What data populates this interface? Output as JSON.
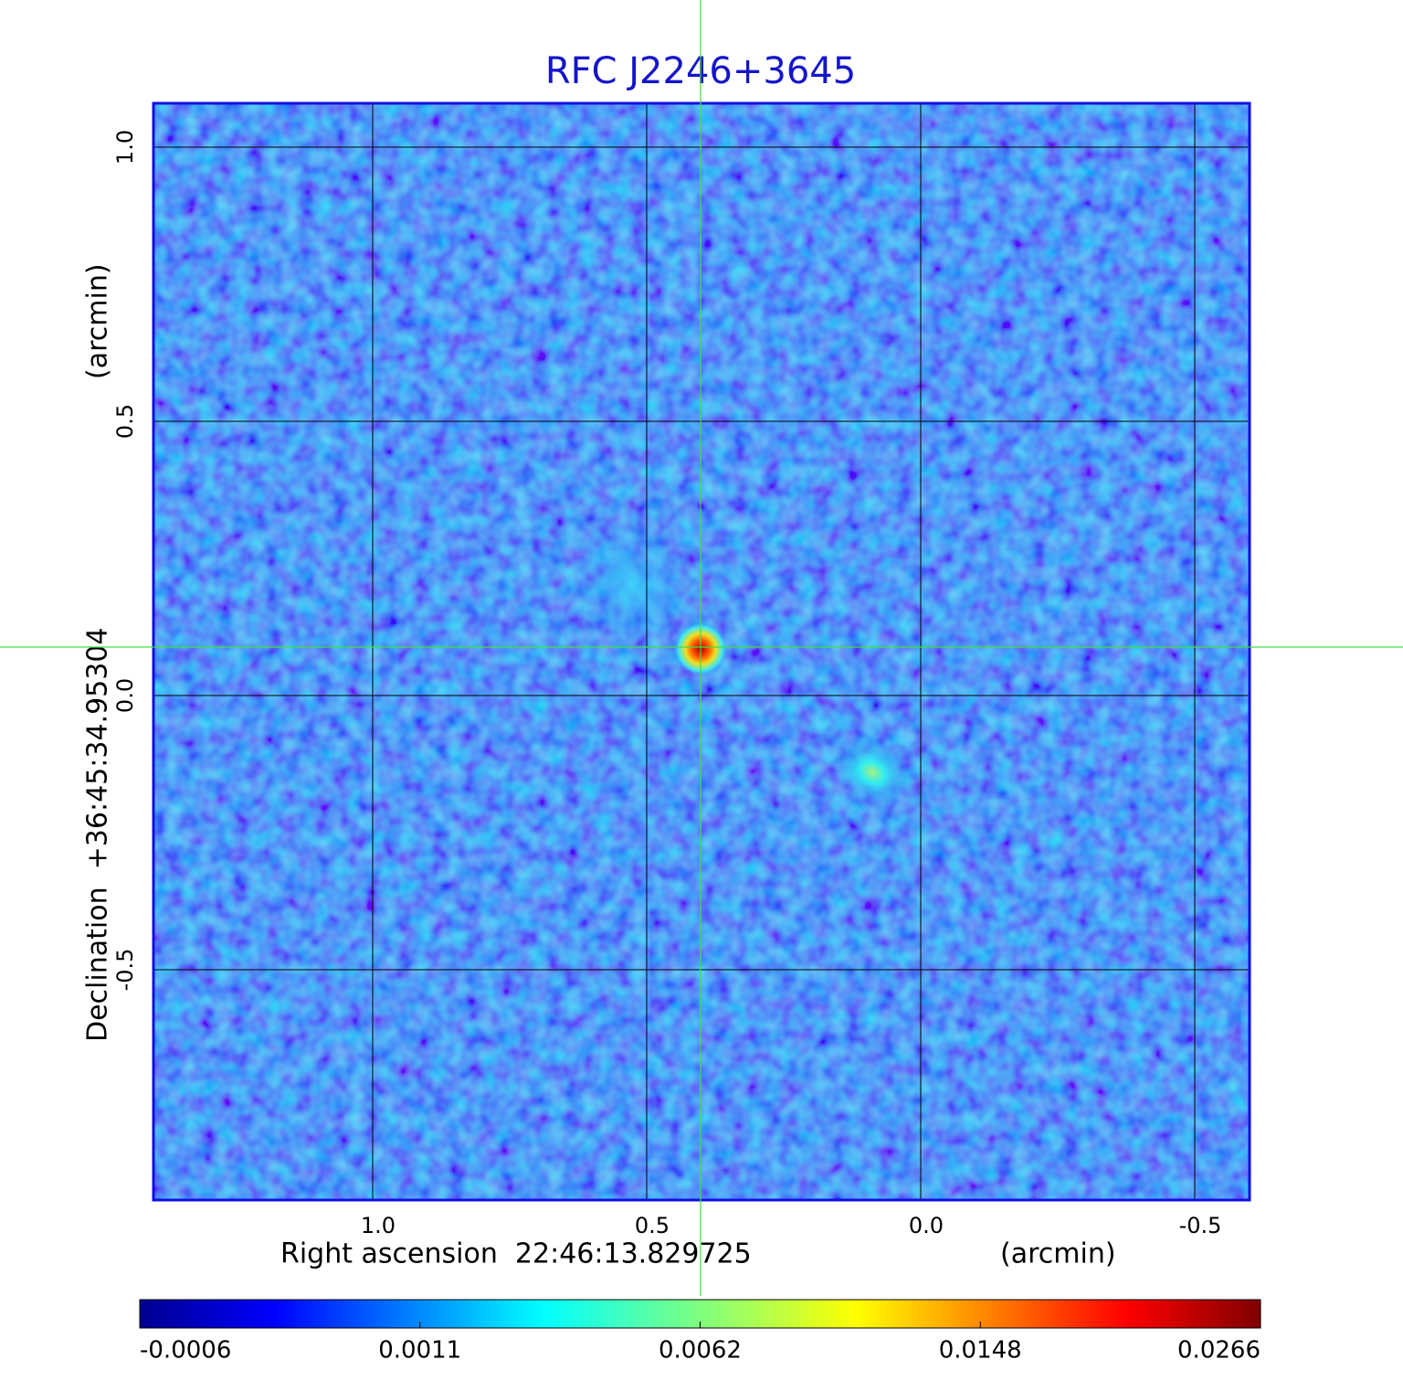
{
  "chart_data": {
    "type": "image",
    "title": "RFC J2246+3645",
    "x_label": "Right ascension  22:46:13.829725",
    "x_unit": "(arcmin)",
    "y_label": "Declination  +36:45:34.95304",
    "y_unit": "(arcmin)",
    "xlim": [
      1.4,
      -0.6
    ],
    "ylim": [
      -0.92,
      1.08
    ],
    "xticks": [
      {
        "value": 1,
        "label": "1.0"
      },
      0.5,
      {
        "value": 0,
        "label": "0.0"
      },
      -0.5
    ],
    "yticks": [
      {
        "value": 1,
        "label": "1.0"
      },
      0.5,
      {
        "value": 0,
        "label": "0.0"
      },
      -0.5
    ],
    "grid": true,
    "colormap": "jet",
    "colorbar_ticks": [
      -0.0006,
      0.0011,
      0.0062,
      0.0148,
      0.0266
    ]
  }
}
